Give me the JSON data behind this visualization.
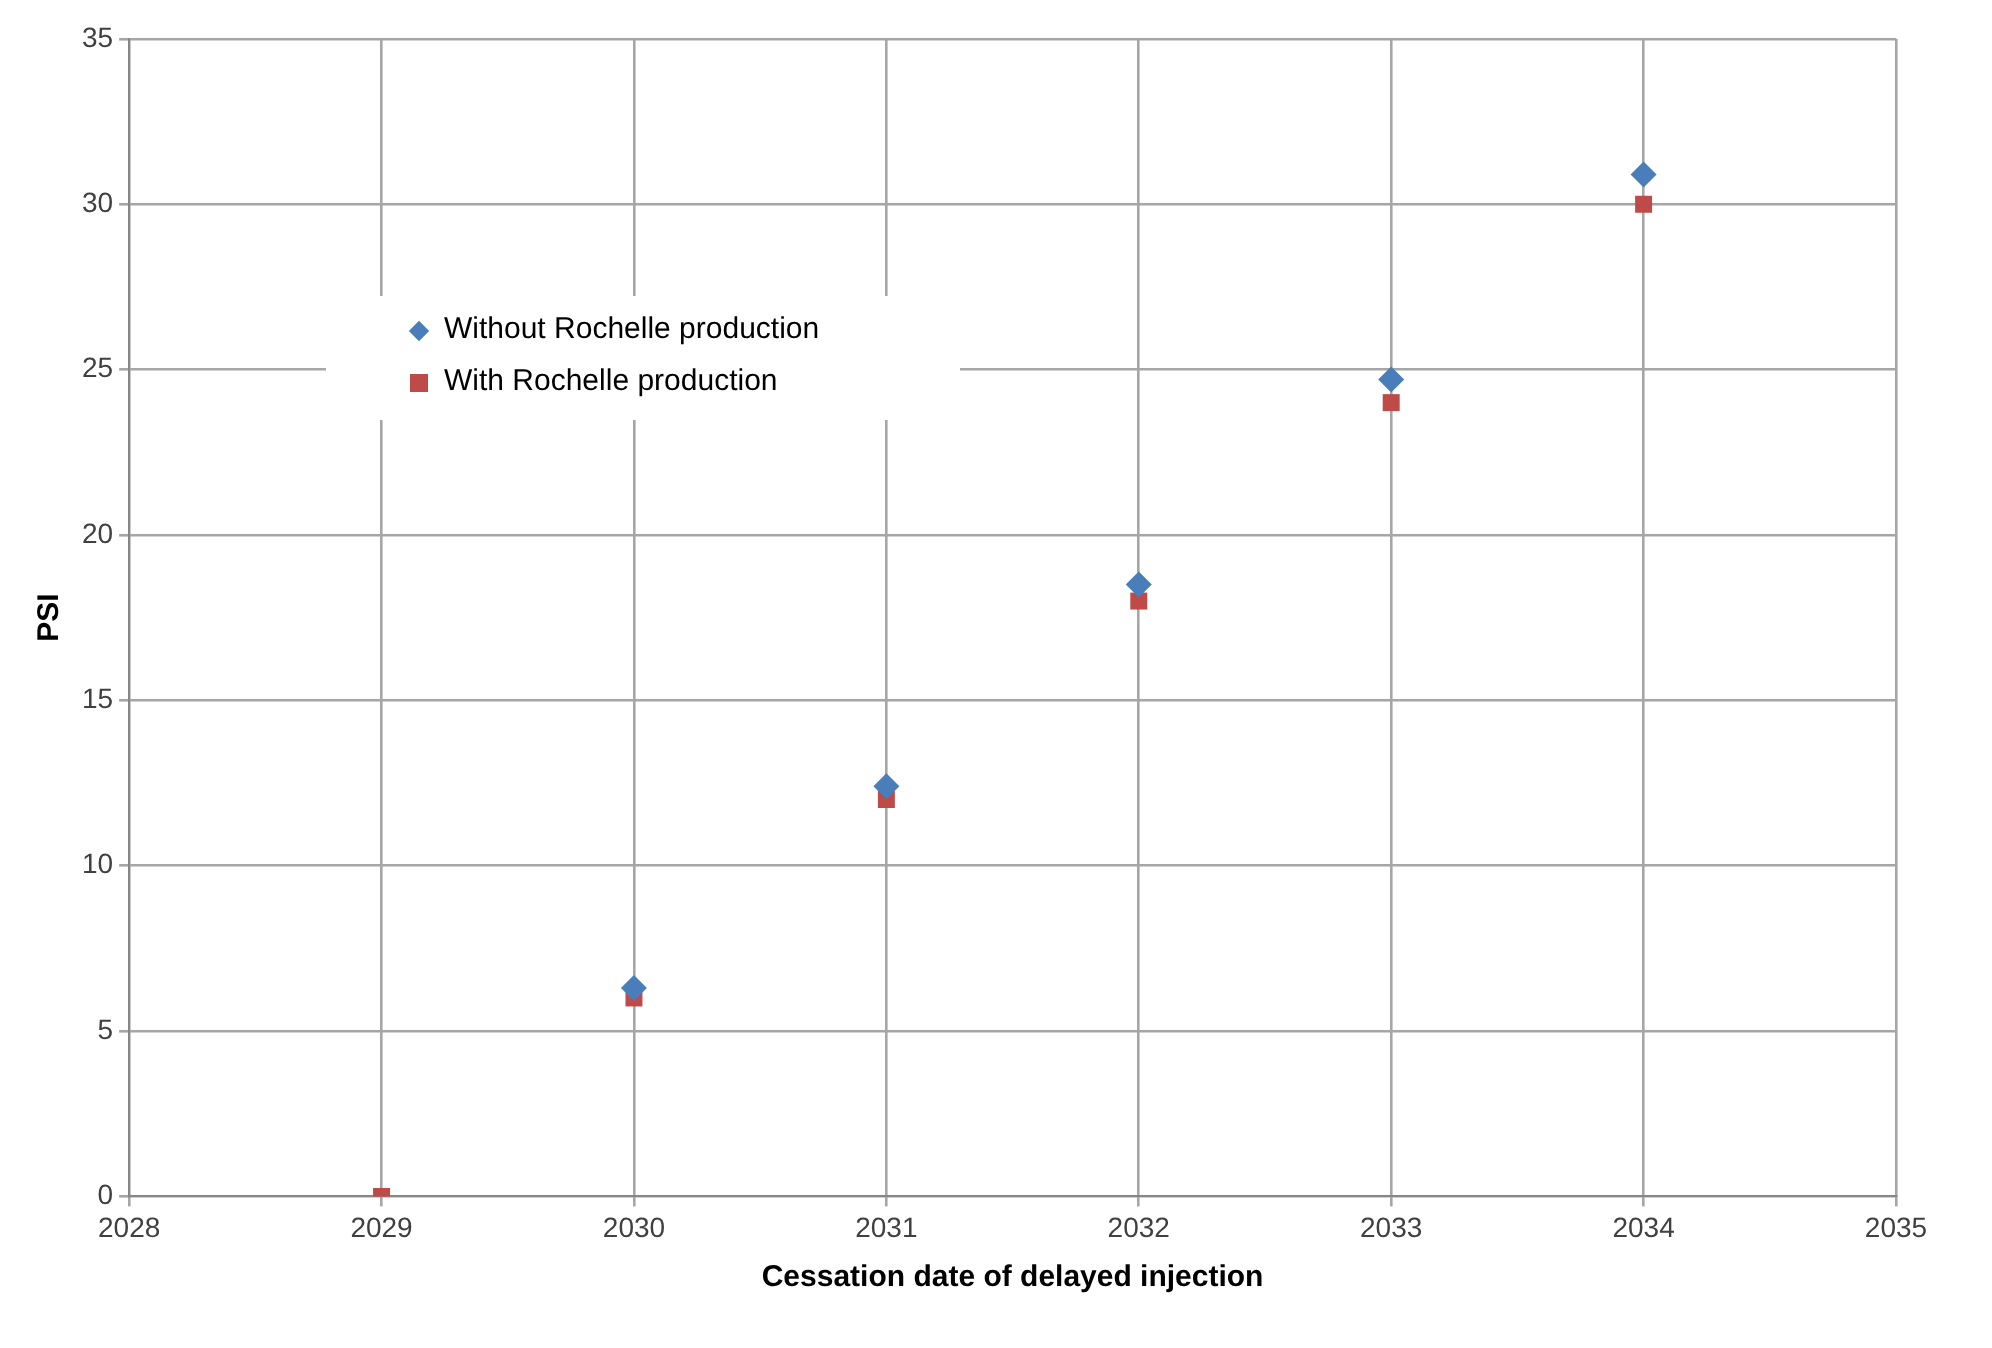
{
  "chart_data": {
    "type": "scatter",
    "xlabel": "Cessation date of delayed injection",
    "ylabel": "PSI",
    "x": [
      2029,
      2030,
      2031,
      2032,
      2033,
      2034
    ],
    "series": [
      {
        "name": "Without Rochelle production",
        "color": "#4a7ebb",
        "marker": "diamond",
        "values": [
          null,
          6.3,
          12.4,
          18.5,
          24.7,
          30.9
        ]
      },
      {
        "name": "With Rochelle production",
        "color": "#be4b48",
        "marker": "square",
        "values": [
          0,
          6,
          12,
          18,
          24,
          30
        ]
      }
    ],
    "xlim": [
      2028,
      2035
    ],
    "xticks": [
      2028,
      2029,
      2030,
      2031,
      2032,
      2033,
      2034,
      2035
    ],
    "ylim": [
      0,
      35
    ],
    "yticks": [
      0,
      5,
      10,
      15,
      20,
      25,
      30,
      35
    ],
    "grid": true,
    "legend": "top left"
  }
}
